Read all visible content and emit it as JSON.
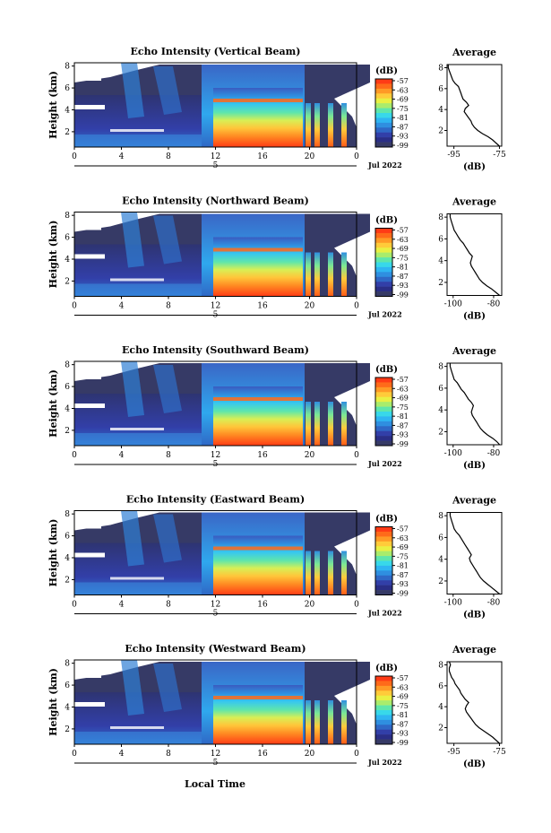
{
  "chart_data": [
    {
      "type": "heatmap",
      "title": "Echo Intensity (Vertical Beam)",
      "ylabel": "Height (km)",
      "x_ticks": [
        "0",
        "4",
        "8",
        "12",
        "16",
        "20",
        "0"
      ],
      "y_ticks": [
        "2",
        "4",
        "6",
        "8"
      ],
      "day_label": "5",
      "date_label": "Jul 2022",
      "colorbar": {
        "unit": "(dB)",
        "ticks": [
          "-57",
          "-63",
          "-69",
          "-75",
          "-81",
          "-87",
          "-93",
          "-99"
        ]
      },
      "profile": {
        "title": "Average",
        "xlabel": "(dB)",
        "x_ticks": [
          "-95",
          "-75"
        ],
        "xlim": [
          -98,
          -74
        ],
        "y_ticks": [
          "2",
          "4",
          "6",
          "8"
        ],
        "ylim": [
          0.5,
          8.3
        ],
        "heights": [
          0.5,
          0.8,
          1.1,
          1.4,
          1.7,
          2.0,
          2.3,
          2.6,
          2.9,
          3.2,
          3.5,
          3.8,
          4.1,
          4.4,
          4.7,
          5.0,
          5.3,
          5.6,
          5.9,
          6.2,
          6.5,
          6.8,
          7.1,
          7.4,
          7.7,
          8.0,
          8.3
        ],
        "values": [
          -75,
          -76.5,
          -78,
          -80,
          -82.5,
          -84.5,
          -86,
          -87,
          -87.5,
          -88.5,
          -89.5,
          -90.5,
          -90,
          -88.5,
          -89.5,
          -91,
          -91.5,
          -92,
          -92.5,
          -93,
          -94.5,
          -95.5,
          -96,
          -96.5,
          -97,
          -97.5,
          -97.5
        ]
      }
    },
    {
      "type": "heatmap",
      "title": "Echo Intensity (Northward Beam)",
      "ylabel": "Height (km)",
      "x_ticks": [
        "0",
        "4",
        "8",
        "12",
        "16",
        "20",
        "0"
      ],
      "y_ticks": [
        "2",
        "4",
        "6",
        "8"
      ],
      "day_label": "5",
      "date_label": "Jul 2022",
      "colorbar": {
        "unit": "(dB)",
        "ticks": [
          "-57",
          "-63",
          "-69",
          "-75",
          "-81",
          "-87",
          "-93",
          "-99"
        ]
      },
      "profile": {
        "title": "Average",
        "xlabel": "(dB)",
        "x_ticks": [
          "-100",
          "-80"
        ],
        "xlim": [
          -103,
          -76
        ],
        "y_ticks": [
          "2",
          "4",
          "6",
          "8"
        ],
        "ylim": [
          0.8,
          8.3
        ],
        "heights": [
          0.8,
          1.1,
          1.4,
          1.7,
          2.0,
          2.3,
          2.6,
          2.9,
          3.2,
          3.5,
          3.8,
          4.1,
          4.4,
          4.7,
          5.0,
          5.3,
          5.6,
          5.9,
          6.2,
          6.5,
          6.8,
          7.1,
          7.4,
          7.7,
          8.0,
          8.3
        ],
        "values": [
          -77,
          -79,
          -81,
          -83.5,
          -85.5,
          -87,
          -88,
          -89,
          -90,
          -91,
          -91.5,
          -91,
          -90.5,
          -92,
          -93,
          -94,
          -95,
          -96.5,
          -97.5,
          -98.5,
          -99.5,
          -100,
          -100.5,
          -101,
          -101.5,
          -101.5
        ]
      }
    },
    {
      "type": "heatmap",
      "title": "Echo Intensity (Southward Beam)",
      "ylabel": "Height (km)",
      "x_ticks": [
        "0",
        "4",
        "8",
        "12",
        "16",
        "20",
        "0"
      ],
      "y_ticks": [
        "2",
        "4",
        "6",
        "8"
      ],
      "day_label": "5",
      "date_label": "Jul 2022",
      "colorbar": {
        "unit": "(dB)",
        "ticks": [
          "-57",
          "-63",
          "-69",
          "-75",
          "-81",
          "-87",
          "-93",
          "-99"
        ]
      },
      "profile": {
        "title": "Average",
        "xlabel": "(dB)",
        "x_ticks": [
          "-100",
          "-80"
        ],
        "xlim": [
          -103,
          -76
        ],
        "y_ticks": [
          "2",
          "4",
          "6",
          "8"
        ],
        "ylim": [
          0.8,
          8.3
        ],
        "heights": [
          0.8,
          1.1,
          1.4,
          1.7,
          2.0,
          2.3,
          2.6,
          2.9,
          3.2,
          3.5,
          3.8,
          4.1,
          4.4,
          4.7,
          5.0,
          5.3,
          5.6,
          5.9,
          6.2,
          6.5,
          6.8,
          7.1,
          7.4,
          7.7,
          8.0,
          8.3
        ],
        "values": [
          -77,
          -78.5,
          -80.5,
          -83,
          -85,
          -86.5,
          -87.5,
          -88.5,
          -89.5,
          -90.5,
          -91,
          -90.5,
          -90,
          -91,
          -92.5,
          -93.5,
          -94.5,
          -96,
          -97,
          -98,
          -99.5,
          -100,
          -100.5,
          -101,
          -101.5,
          -101.5
        ]
      }
    },
    {
      "type": "heatmap",
      "title": "Echo Intensity (Eastward Beam)",
      "ylabel": "Height (km)",
      "x_ticks": [
        "0",
        "4",
        "8",
        "12",
        "16",
        "20",
        "0"
      ],
      "y_ticks": [
        "2",
        "4",
        "6",
        "8"
      ],
      "day_label": "5",
      "date_label": "Jul 2022",
      "colorbar": {
        "unit": "(dB)",
        "ticks": [
          "-57",
          "-63",
          "-69",
          "-75",
          "-81",
          "-87",
          "-93",
          "-99"
        ]
      },
      "profile": {
        "title": "Average",
        "xlabel": "(dB)",
        "x_ticks": [
          "-100",
          "-80"
        ],
        "xlim": [
          -103,
          -76
        ],
        "y_ticks": [
          "2",
          "4",
          "6",
          "8"
        ],
        "ylim": [
          0.8,
          8.3
        ],
        "heights": [
          0.8,
          1.1,
          1.4,
          1.7,
          2.0,
          2.3,
          2.6,
          2.9,
          3.2,
          3.5,
          3.8,
          4.1,
          4.4,
          4.7,
          5.0,
          5.3,
          5.6,
          5.9,
          6.2,
          6.5,
          6.8,
          7.1,
          7.4,
          7.7,
          8.0,
          8.3
        ],
        "values": [
          -77,
          -79,
          -81,
          -83,
          -85,
          -86.5,
          -87.5,
          -88.5,
          -89.5,
          -90.5,
          -91.5,
          -92,
          -91,
          -92,
          -93,
          -94,
          -95,
          -96,
          -97,
          -98.5,
          -99.5,
          -100,
          -100.5,
          -101,
          -101.5,
          -101.5
        ]
      }
    },
    {
      "type": "heatmap",
      "title": "Echo Intensity (Westward Beam)",
      "ylabel": "Height (km)",
      "x_ticks": [
        "0",
        "4",
        "8",
        "12",
        "16",
        "20",
        "0"
      ],
      "y_ticks": [
        "2",
        "4",
        "6",
        "8"
      ],
      "day_label": "5",
      "date_label": "Jul 2022",
      "colorbar": {
        "unit": "(dB)",
        "ticks": [
          "-57",
          "-63",
          "-69",
          "-75",
          "-81",
          "-87",
          "-93",
          "-99"
        ]
      },
      "profile": {
        "title": "Average",
        "xlabel": "(dB)",
        "x_ticks": [
          "-95",
          "-75"
        ],
        "xlim": [
          -98,
          -74
        ],
        "y_ticks": [
          "2",
          "4",
          "6",
          "8"
        ],
        "ylim": [
          0.5,
          8.3
        ],
        "heights": [
          0.5,
          0.8,
          1.1,
          1.4,
          1.7,
          2.0,
          2.3,
          2.6,
          2.9,
          3.2,
          3.5,
          3.8,
          4.1,
          4.4,
          4.7,
          5.0,
          5.3,
          5.6,
          5.9,
          6.2,
          6.5,
          6.8,
          7.1,
          7.4,
          7.7,
          8.0,
          8.3
        ],
        "values": [
          -75,
          -76.5,
          -78,
          -80,
          -82,
          -84,
          -85.5,
          -86.5,
          -87.5,
          -88.5,
          -89.5,
          -90,
          -89.5,
          -88.5,
          -90,
          -91,
          -92,
          -92.5,
          -93.5,
          -94.5,
          -95,
          -96,
          -96.5,
          -97,
          -97,
          -96.5,
          -97
        ]
      }
    }
  ],
  "common": {
    "xlabel": "Local Time",
    "colors": {
      "background": "#ffffff",
      "colorscale": [
        "#ff3b16",
        "#ff6a1a",
        "#ff9a26",
        "#ffcb3a",
        "#e9f043",
        "#a9ec6c",
        "#5fe6ab",
        "#38d8ea",
        "#2fb5f2",
        "#2f8fe0",
        "#2f68c6",
        "#323fa8",
        "#2a2e86",
        "#363a66"
      ]
    }
  }
}
